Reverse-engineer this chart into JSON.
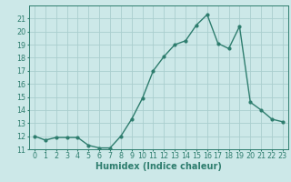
{
  "x": [
    0,
    1,
    2,
    3,
    4,
    5,
    6,
    7,
    8,
    9,
    10,
    11,
    12,
    13,
    14,
    15,
    16,
    17,
    18,
    19,
    20,
    21,
    22,
    23
  ],
  "y": [
    12.0,
    11.7,
    11.9,
    11.9,
    11.9,
    11.3,
    11.1,
    11.1,
    12.0,
    13.3,
    14.9,
    17.0,
    18.1,
    19.0,
    19.3,
    20.5,
    21.3,
    19.1,
    18.7,
    20.4,
    14.6,
    14.0,
    13.3,
    13.1
  ],
  "line_color": "#2e7d6e",
  "marker": "o",
  "marker_size": 2.0,
  "linewidth": 1.0,
  "bg_color": "#cce8e8",
  "grid_color": "#aacece",
  "tick_color": "#2e7d6e",
  "xlabel": "Humidex (Indice chaleur)",
  "xlabel_fontsize": 7,
  "ylim": [
    11,
    22
  ],
  "yticks": [
    11,
    12,
    13,
    14,
    15,
    16,
    17,
    18,
    19,
    20,
    21
  ],
  "xticks": [
    0,
    1,
    2,
    3,
    4,
    5,
    6,
    7,
    8,
    9,
    10,
    11,
    12,
    13,
    14,
    15,
    16,
    17,
    18,
    19,
    20,
    21,
    22,
    23
  ],
  "xtick_labels": [
    "0",
    "1",
    "2",
    "3",
    "4",
    "5",
    "6",
    "7",
    "8",
    "9",
    "10",
    "11",
    "12",
    "13",
    "14",
    "15",
    "16",
    "17",
    "18",
    "19",
    "20",
    "21",
    "22",
    "23"
  ],
  "tick_fontsize": 5.8
}
